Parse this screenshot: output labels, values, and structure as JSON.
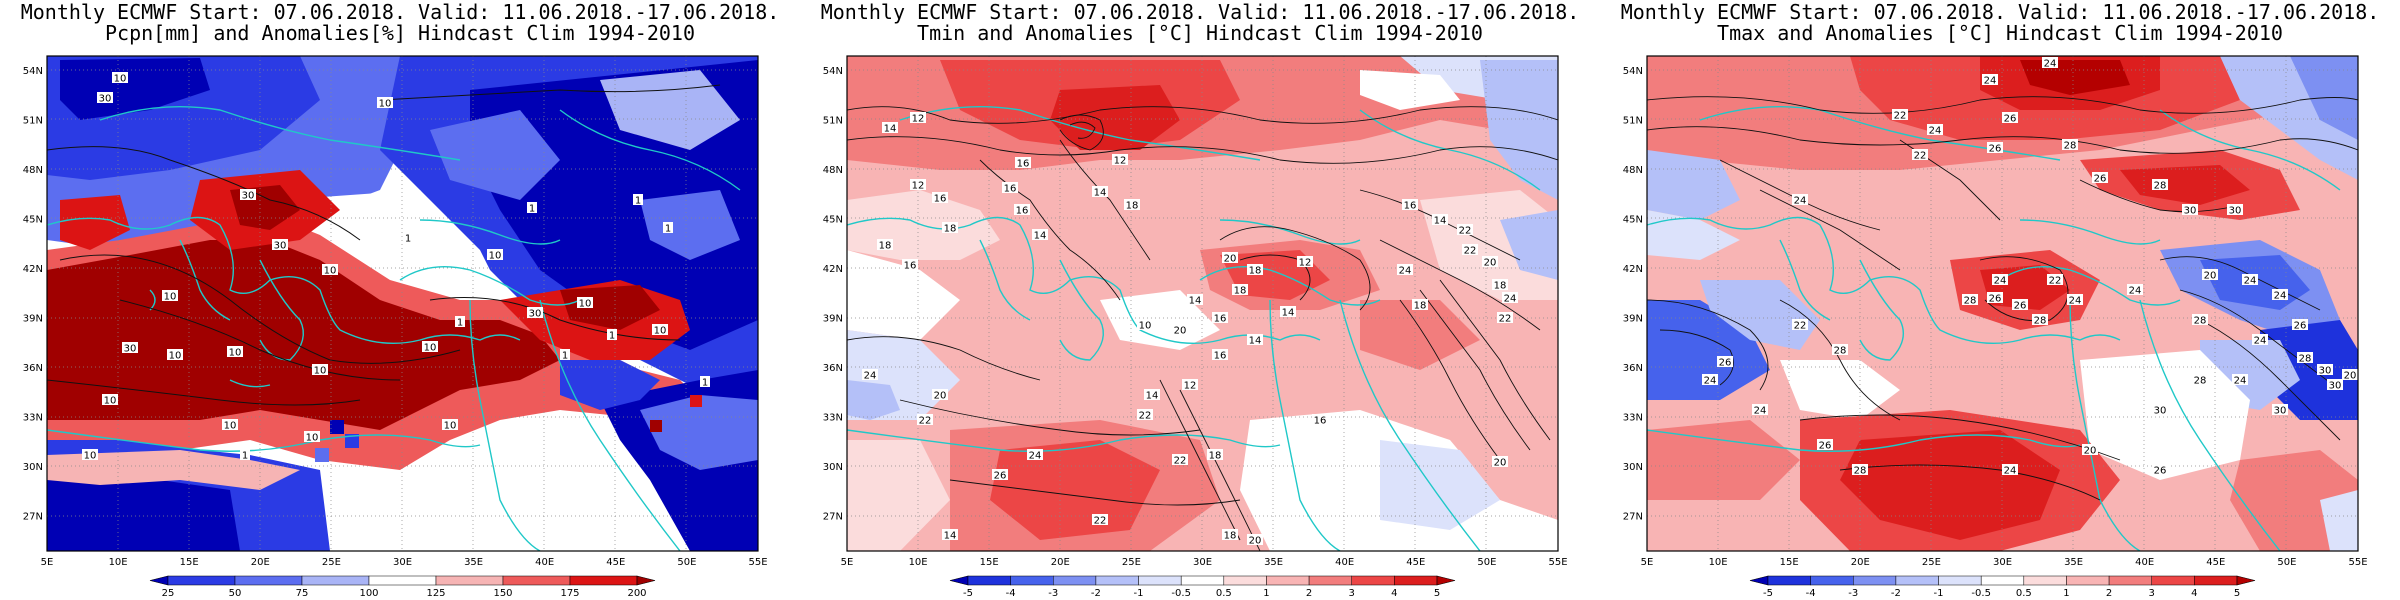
{
  "panels": [
    {
      "id": "pcpn",
      "title_line1": "Monthly ECMWF Start: 07.06.2018. Valid: 11.06.2018.-17.06.2018.",
      "title_line2": "Pcpn[mm] and Anomalies[%] Hindcast Clim 1994-2010",
      "colorbar_labels": [
        "25",
        "50",
        "75",
        "100",
        "125",
        "150",
        "175",
        "200"
      ],
      "colorbar_colors": [
        "#0000b4",
        "#2b3be4",
        "#5c6ef0",
        "#a9b4f6",
        "#ffffff",
        "#f6b4b4",
        "#ee5a5a",
        "#dc1414",
        "#a00000"
      ],
      "contour_labels": [
        "10",
        "30",
        "10",
        "30",
        "30",
        "10",
        "30",
        "10",
        "10",
        "10",
        "10",
        "10",
        "10",
        "10",
        "10",
        "10",
        "30",
        "10",
        "1",
        "10",
        "1",
        "1",
        "1",
        "1",
        "1",
        "1",
        "1",
        "1",
        "10",
        "10"
      ]
    },
    {
      "id": "tmin",
      "title_line1": "Monthly ECMWF Start: 07.06.2018. Valid: 11.06.2018.-17.06.2018.",
      "title_line2": "Tmin and Anomalies [°C] Hindcast Clim 1994-2010",
      "colorbar_labels": [
        "-5",
        "-4",
        "-3",
        "-2",
        "-1",
        "-0.5",
        "0.5",
        "1",
        "2",
        "3",
        "4",
        "5"
      ],
      "colorbar_colors": [
        "#0000b4",
        "#1e32dc",
        "#4662ec",
        "#7d90f2",
        "#b4c0f8",
        "#dce2fb",
        "#ffffff",
        "#fbdcdc",
        "#f8b4b4",
        "#f27d7d",
        "#ec4646",
        "#dc1e1e",
        "#b40000"
      ],
      "contour_labels": [
        "12",
        "14",
        "16",
        "16",
        "14",
        "18",
        "16",
        "18",
        "12",
        "16",
        "14",
        "18",
        "16",
        "20",
        "18",
        "18",
        "14",
        "16",
        "12",
        "14",
        "20",
        "10",
        "14",
        "16",
        "12",
        "14",
        "16",
        "14",
        "22",
        "22",
        "20",
        "18",
        "24",
        "22",
        "24",
        "18",
        "20",
        "22",
        "24",
        "26",
        "22",
        "18",
        "20",
        "18",
        "22",
        "16",
        "14",
        "24",
        "22",
        "20",
        "12"
      ]
    },
    {
      "id": "tmax",
      "title_line1": "Monthly ECMWF Start: 07.06.2018. Valid: 11.06.2018.-17.06.2018.",
      "title_line2": "Tmax and Anomalies [°C] Hindcast Clim 1994-2010",
      "colorbar_labels": [
        "-5",
        "-4",
        "-3",
        "-2",
        "-1",
        "-0.5",
        "0.5",
        "1",
        "2",
        "3",
        "4",
        "5"
      ],
      "colorbar_colors": [
        "#0000b4",
        "#1e32dc",
        "#4662ec",
        "#7d90f2",
        "#b4c0f8",
        "#dce2fb",
        "#ffffff",
        "#fbdcdc",
        "#f8b4b4",
        "#f27d7d",
        "#ec4646",
        "#dc1e1e",
        "#b40000"
      ],
      "contour_labels": [
        "24",
        "22",
        "24",
        "26",
        "26",
        "28",
        "26",
        "24",
        "22",
        "30",
        "28",
        "30",
        "24",
        "26",
        "28",
        "26",
        "28",
        "24",
        "22",
        "24",
        "20",
        "24",
        "24",
        "26",
        "24",
        "28",
        "30",
        "30",
        "24",
        "28",
        "30",
        "20",
        "26",
        "24",
        "22",
        "28",
        "24",
        "26",
        "28",
        "20",
        "30",
        "24",
        "26",
        "28",
        "24"
      ]
    }
  ],
  "axes": {
    "lat_labels": [
      "54N",
      "51N",
      "48N",
      "45N",
      "42N",
      "39N",
      "36N",
      "33N",
      "30N",
      "27N"
    ],
    "lon_labels": [
      "5E",
      "10E",
      "15E",
      "20E",
      "25E",
      "30E",
      "35E",
      "40E",
      "45E",
      "50E",
      "55E"
    ]
  }
}
